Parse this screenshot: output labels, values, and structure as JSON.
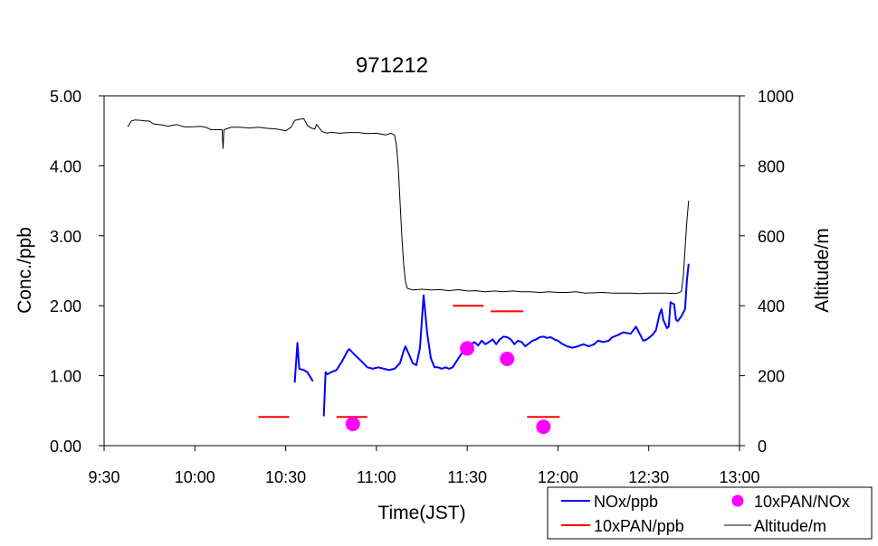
{
  "chart_data": {
    "type": "line",
    "title": "971212",
    "xlabel": "Time(JST)",
    "ylabel_left": "Conc./ppb",
    "ylabel_right": "Altitude/m",
    "x_unit": "hours (JST)",
    "xlim": [
      9.5,
      13.0
    ],
    "xticks": [
      {
        "v": 9.5,
        "label": "9:30"
      },
      {
        "v": 10.0,
        "label": "10:00"
      },
      {
        "v": 10.5,
        "label": "10:30"
      },
      {
        "v": 11.0,
        "label": "11:00"
      },
      {
        "v": 11.5,
        "label": "11:30"
      },
      {
        "v": 12.0,
        "label": "12:00"
      },
      {
        "v": 12.5,
        "label": "12:30"
      },
      {
        "v": 13.0,
        "label": "13:00"
      }
    ],
    "ylim_left": [
      0,
      5
    ],
    "yticks_left": [
      {
        "v": 0,
        "label": "0.00"
      },
      {
        "v": 1,
        "label": "1.00"
      },
      {
        "v": 2,
        "label": "2.00"
      },
      {
        "v": 3,
        "label": "3.00"
      },
      {
        "v": 4,
        "label": "4.00"
      },
      {
        "v": 5,
        "label": "5.00"
      }
    ],
    "ylim_right": [
      0,
      1000
    ],
    "yticks_right": [
      {
        "v": 0,
        "label": "0"
      },
      {
        "v": 200,
        "label": "200"
      },
      {
        "v": 400,
        "label": "400"
      },
      {
        "v": 600,
        "label": "600"
      },
      {
        "v": 800,
        "label": "800"
      },
      {
        "v": 1000,
        "label": "1000"
      }
    ],
    "grid": false,
    "legend_position": "bottom-right",
    "series": [
      {
        "name": "NOx/ppb",
        "kind": "line",
        "axis": "left",
        "color": "#0000ff",
        "segments": [
          [
            [
              10.55,
              0.9
            ],
            [
              10.565,
              1.47
            ],
            [
              10.575,
              1.1
            ],
            [
              10.6,
              1.08
            ],
            [
              10.62,
              1.05
            ],
            [
              10.65,
              0.92
            ]
          ],
          [
            [
              10.71,
              0.42
            ],
            [
              10.72,
              1.05
            ],
            [
              10.73,
              1.02
            ],
            [
              10.75,
              1.05
            ],
            [
              10.78,
              1.08
            ],
            [
              10.81,
              1.2
            ],
            [
              10.84,
              1.35
            ],
            [
              10.85,
              1.38
            ],
            [
              10.88,
              1.3
            ],
            [
              10.92,
              1.2
            ],
            [
              10.95,
              1.12
            ],
            [
              10.98,
              1.1
            ],
            [
              11.01,
              1.12
            ],
            [
              11.04,
              1.1
            ],
            [
              11.07,
              1.08
            ],
            [
              11.1,
              1.1
            ],
            [
              11.13,
              1.18
            ],
            [
              11.15,
              1.35
            ],
            [
              11.16,
              1.42
            ],
            [
              11.18,
              1.3
            ],
            [
              11.2,
              1.18
            ],
            [
              11.22,
              1.15
            ],
            [
              11.24,
              1.4
            ],
            [
              11.26,
              2.15
            ],
            [
              11.28,
              1.6
            ],
            [
              11.3,
              1.25
            ],
            [
              11.32,
              1.12
            ],
            [
              11.34,
              1.12
            ],
            [
              11.36,
              1.1
            ],
            [
              11.38,
              1.12
            ],
            [
              11.4,
              1.1
            ],
            [
              11.42,
              1.12
            ],
            [
              11.44,
              1.2
            ],
            [
              11.46,
              1.28
            ],
            [
              11.48,
              1.36
            ],
            [
              11.5,
              1.4
            ],
            [
              11.52,
              1.45
            ],
            [
              11.54,
              1.48
            ],
            [
              11.56,
              1.43
            ],
            [
              11.58,
              1.5
            ],
            [
              11.6,
              1.45
            ],
            [
              11.62,
              1.48
            ],
            [
              11.64,
              1.52
            ],
            [
              11.66,
              1.45
            ],
            [
              11.68,
              1.52
            ],
            [
              11.7,
              1.56
            ],
            [
              11.72,
              1.55
            ],
            [
              11.74,
              1.52
            ],
            [
              11.76,
              1.45
            ],
            [
              11.78,
              1.5
            ],
            [
              11.8,
              1.48
            ],
            [
              11.82,
              1.42
            ],
            [
              11.84,
              1.46
            ],
            [
              11.86,
              1.5
            ],
            [
              11.88,
              1.52
            ],
            [
              11.9,
              1.55
            ],
            [
              11.92,
              1.56
            ],
            [
              11.94,
              1.54
            ],
            [
              11.96,
              1.55
            ],
            [
              11.98,
              1.52
            ],
            [
              12.0,
              1.5
            ],
            [
              12.02,
              1.46
            ],
            [
              12.05,
              1.42
            ],
            [
              12.08,
              1.4
            ],
            [
              12.11,
              1.42
            ],
            [
              12.14,
              1.45
            ],
            [
              12.17,
              1.42
            ],
            [
              12.2,
              1.45
            ],
            [
              12.22,
              1.5
            ],
            [
              12.25,
              1.48
            ],
            [
              12.28,
              1.5
            ],
            [
              12.3,
              1.55
            ],
            [
              12.33,
              1.58
            ],
            [
              12.36,
              1.62
            ],
            [
              12.4,
              1.6
            ],
            [
              12.43,
              1.7
            ],
            [
              12.45,
              1.6
            ],
            [
              12.47,
              1.5
            ],
            [
              12.49,
              1.52
            ],
            [
              12.52,
              1.58
            ],
            [
              12.54,
              1.65
            ],
            [
              12.56,
              1.88
            ],
            [
              12.57,
              1.95
            ],
            [
              12.58,
              1.8
            ],
            [
              12.6,
              1.68
            ],
            [
              12.61,
              1.7
            ],
            [
              12.62,
              2.05
            ],
            [
              12.64,
              2.02
            ],
            [
              12.65,
              1.8
            ],
            [
              12.66,
              1.78
            ],
            [
              12.68,
              1.85
            ],
            [
              12.7,
              1.95
            ],
            [
              12.71,
              2.35
            ],
            [
              12.72,
              2.6
            ]
          ]
        ]
      },
      {
        "name": "10xPAN/ppb",
        "kind": "hbar",
        "axis": "left",
        "color": "#ff0000",
        "points": [
          {
            "x0": 10.35,
            "x1": 10.52,
            "y": 0.41
          },
          {
            "x0": 10.78,
            "x1": 10.95,
            "y": 0.41
          },
          {
            "x0": 11.42,
            "x1": 11.59,
            "y": 2.0
          },
          {
            "x0": 11.63,
            "x1": 11.81,
            "y": 1.92
          },
          {
            "x0": 11.83,
            "x1": 12.01,
            "y": 0.41
          }
        ]
      },
      {
        "name": "10xPAN/NOx",
        "kind": "marker",
        "axis": "left",
        "color": "#ff00ff",
        "points": [
          [
            10.87,
            0.31
          ],
          [
            11.5,
            1.39
          ],
          [
            11.72,
            1.24
          ],
          [
            11.92,
            0.27
          ]
        ]
      },
      {
        "name": "Altitude/m",
        "kind": "line",
        "axis": "right",
        "color": "#000000",
        "segments": [
          [
            [
              9.63,
              911
            ],
            [
              9.65,
              928
            ],
            [
              9.67,
              931
            ],
            [
              9.7,
              930
            ],
            [
              9.73,
              928
            ],
            [
              9.75,
              928
            ],
            [
              9.77,
              920
            ],
            [
              9.8,
              918
            ],
            [
              9.83,
              916
            ],
            [
              9.85,
              913
            ],
            [
              9.87,
              915
            ],
            [
              9.9,
              918
            ],
            [
              9.93,
              913
            ],
            [
              9.95,
              911
            ],
            [
              10.0,
              912
            ],
            [
              10.03,
              913
            ],
            [
              10.06,
              910
            ],
            [
              10.09,
              903
            ],
            [
              10.15,
              903
            ],
            [
              10.155,
              850
            ],
            [
              10.16,
              903
            ],
            [
              10.2,
              910
            ],
            [
              10.25,
              910
            ],
            [
              10.3,
              908
            ],
            [
              10.35,
              910
            ],
            [
              10.4,
              907
            ],
            [
              10.45,
              905
            ],
            [
              10.5,
              900
            ],
            [
              10.53,
              910
            ],
            [
              10.55,
              930
            ],
            [
              10.58,
              933
            ],
            [
              10.6,
              935
            ],
            [
              10.62,
              915
            ],
            [
              10.64,
              908
            ],
            [
              10.66,
              905
            ],
            [
              10.67,
              918
            ],
            [
              10.7,
              898
            ],
            [
              10.73,
              893
            ],
            [
              10.75,
              896
            ],
            [
              10.8,
              893
            ],
            [
              10.85,
              895
            ],
            [
              10.9,
              895
            ],
            [
              10.95,
              892
            ],
            [
              11.0,
              893
            ],
            [
              11.05,
              888
            ],
            [
              11.08,
              893
            ],
            [
              11.1,
              888
            ],
            [
              11.11,
              860
            ],
            [
              11.12,
              800
            ],
            [
              11.13,
              700
            ],
            [
              11.14,
              600
            ],
            [
              11.15,
              520
            ],
            [
              11.16,
              470
            ],
            [
              11.17,
              450
            ],
            [
              11.2,
              445
            ],
            [
              11.25,
              447
            ],
            [
              11.3,
              445
            ],
            [
              11.35,
              446
            ],
            [
              11.4,
              443
            ],
            [
              11.45,
              446
            ],
            [
              11.5,
              442
            ],
            [
              11.55,
              443
            ],
            [
              11.6,
              440
            ],
            [
              11.65,
              442
            ],
            [
              11.7,
              440
            ],
            [
              11.75,
              442
            ],
            [
              11.8,
              440
            ],
            [
              11.85,
              440
            ],
            [
              11.9,
              438
            ],
            [
              11.95,
              440
            ],
            [
              12.0,
              438
            ],
            [
              12.05,
              438
            ],
            [
              12.1,
              440
            ],
            [
              12.15,
              436
            ],
            [
              12.2,
              437
            ],
            [
              12.25,
              438
            ],
            [
              12.3,
              436
            ],
            [
              12.35,
              436
            ],
            [
              12.4,
              436
            ],
            [
              12.45,
              435
            ],
            [
              12.5,
              436
            ],
            [
              12.55,
              436
            ],
            [
              12.6,
              436
            ],
            [
              12.65,
              435
            ],
            [
              12.68,
              440
            ],
            [
              12.69,
              480
            ],
            [
              12.7,
              560
            ],
            [
              12.71,
              640
            ],
            [
              12.72,
              700
            ]
          ]
        ]
      }
    ]
  }
}
